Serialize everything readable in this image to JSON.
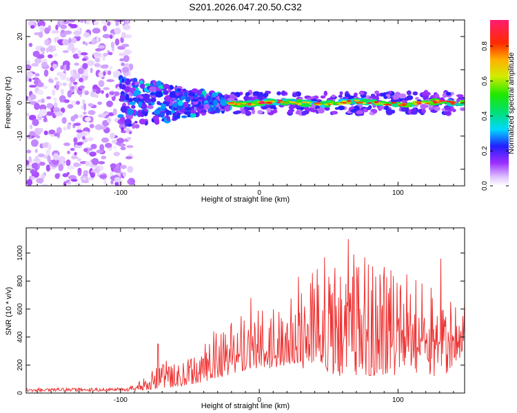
{
  "title": "S201.2026.047.20.50.C32",
  "chart_data": [
    {
      "type": "heatmap",
      "xlabel": "Height of straight line (km)",
      "ylabel": "Frequency (Hz)",
      "xlim": [
        -168,
        148
      ],
      "ylim": [
        -25,
        25
      ],
      "xticks": [
        -100,
        0,
        100
      ],
      "yticks": [
        -20,
        -10,
        0,
        10,
        20
      ],
      "description_regions": [
        {
          "x_range": [
            -168,
            -100
          ],
          "f_range": [
            -25,
            25
          ],
          "amplitude_range": [
            0.02,
            0.12
          ]
        },
        {
          "x_range": [
            -100,
            -22
          ],
          "f_range": [
            -9,
            7
          ],
          "amplitude_range": [
            0.1,
            0.3
          ]
        },
        {
          "x_range": [
            -22,
            148
          ],
          "f_center": 0,
          "f_halfwidth": 2,
          "amplitude_range": [
            0.5,
            0.95
          ]
        }
      ],
      "colorbar": {
        "label": "Normalized spectral amplitude",
        "range": [
          0.0,
          0.95
        ],
        "ticks": [
          0.0,
          0.2,
          0.4,
          0.6,
          0.8
        ],
        "tick_labels": [
          "0.0",
          "0.2",
          "0.4",
          "0.6",
          "0.8"
        ]
      }
    },
    {
      "type": "line",
      "xlabel": "Height of straight line (km)",
      "ylabel": "SNR (10 * v/v)",
      "xlim": [
        -168,
        148
      ],
      "ylim": [
        0,
        1180
      ],
      "xticks": [
        -100,
        0,
        100
      ],
      "yticks": [
        0,
        200,
        400,
        600,
        800,
        1000
      ],
      "color": "#ee3333",
      "envelope": {
        "x": [
          -168,
          -120,
          -95,
          -85,
          -75,
          -65,
          -55,
          -45,
          -35,
          -25,
          -15,
          -5,
          5,
          15,
          25,
          35,
          45,
          55,
          65,
          75,
          85,
          95,
          105,
          115,
          125,
          135,
          140,
          145,
          148
        ],
        "baseline": [
          10,
          10,
          12,
          18,
          30,
          40,
          50,
          70,
          90,
          120,
          150,
          180,
          170,
          190,
          210,
          160,
          170,
          120,
          120,
          130,
          120,
          100,
          120,
          150,
          120,
          140,
          210,
          250,
          300
        ],
        "peak": [
          35,
          35,
          40,
          90,
          180,
          250,
          220,
          310,
          420,
          460,
          560,
          590,
          620,
          580,
          720,
          850,
          950,
          1000,
          960,
          960,
          900,
          940,
          900,
          860,
          810,
          720,
          640,
          560,
          580
        ]
      },
      "spikes": [
        [
          -73,
          350
        ],
        [
          -33,
          440
        ],
        [
          -6,
          680
        ],
        [
          28,
          830
        ],
        [
          47,
          970
        ],
        [
          64,
          1100
        ],
        [
          68,
          990
        ],
        [
          76,
          970
        ],
        [
          90,
          900
        ],
        [
          131,
          960
        ],
        [
          148,
          650
        ]
      ]
    }
  ]
}
